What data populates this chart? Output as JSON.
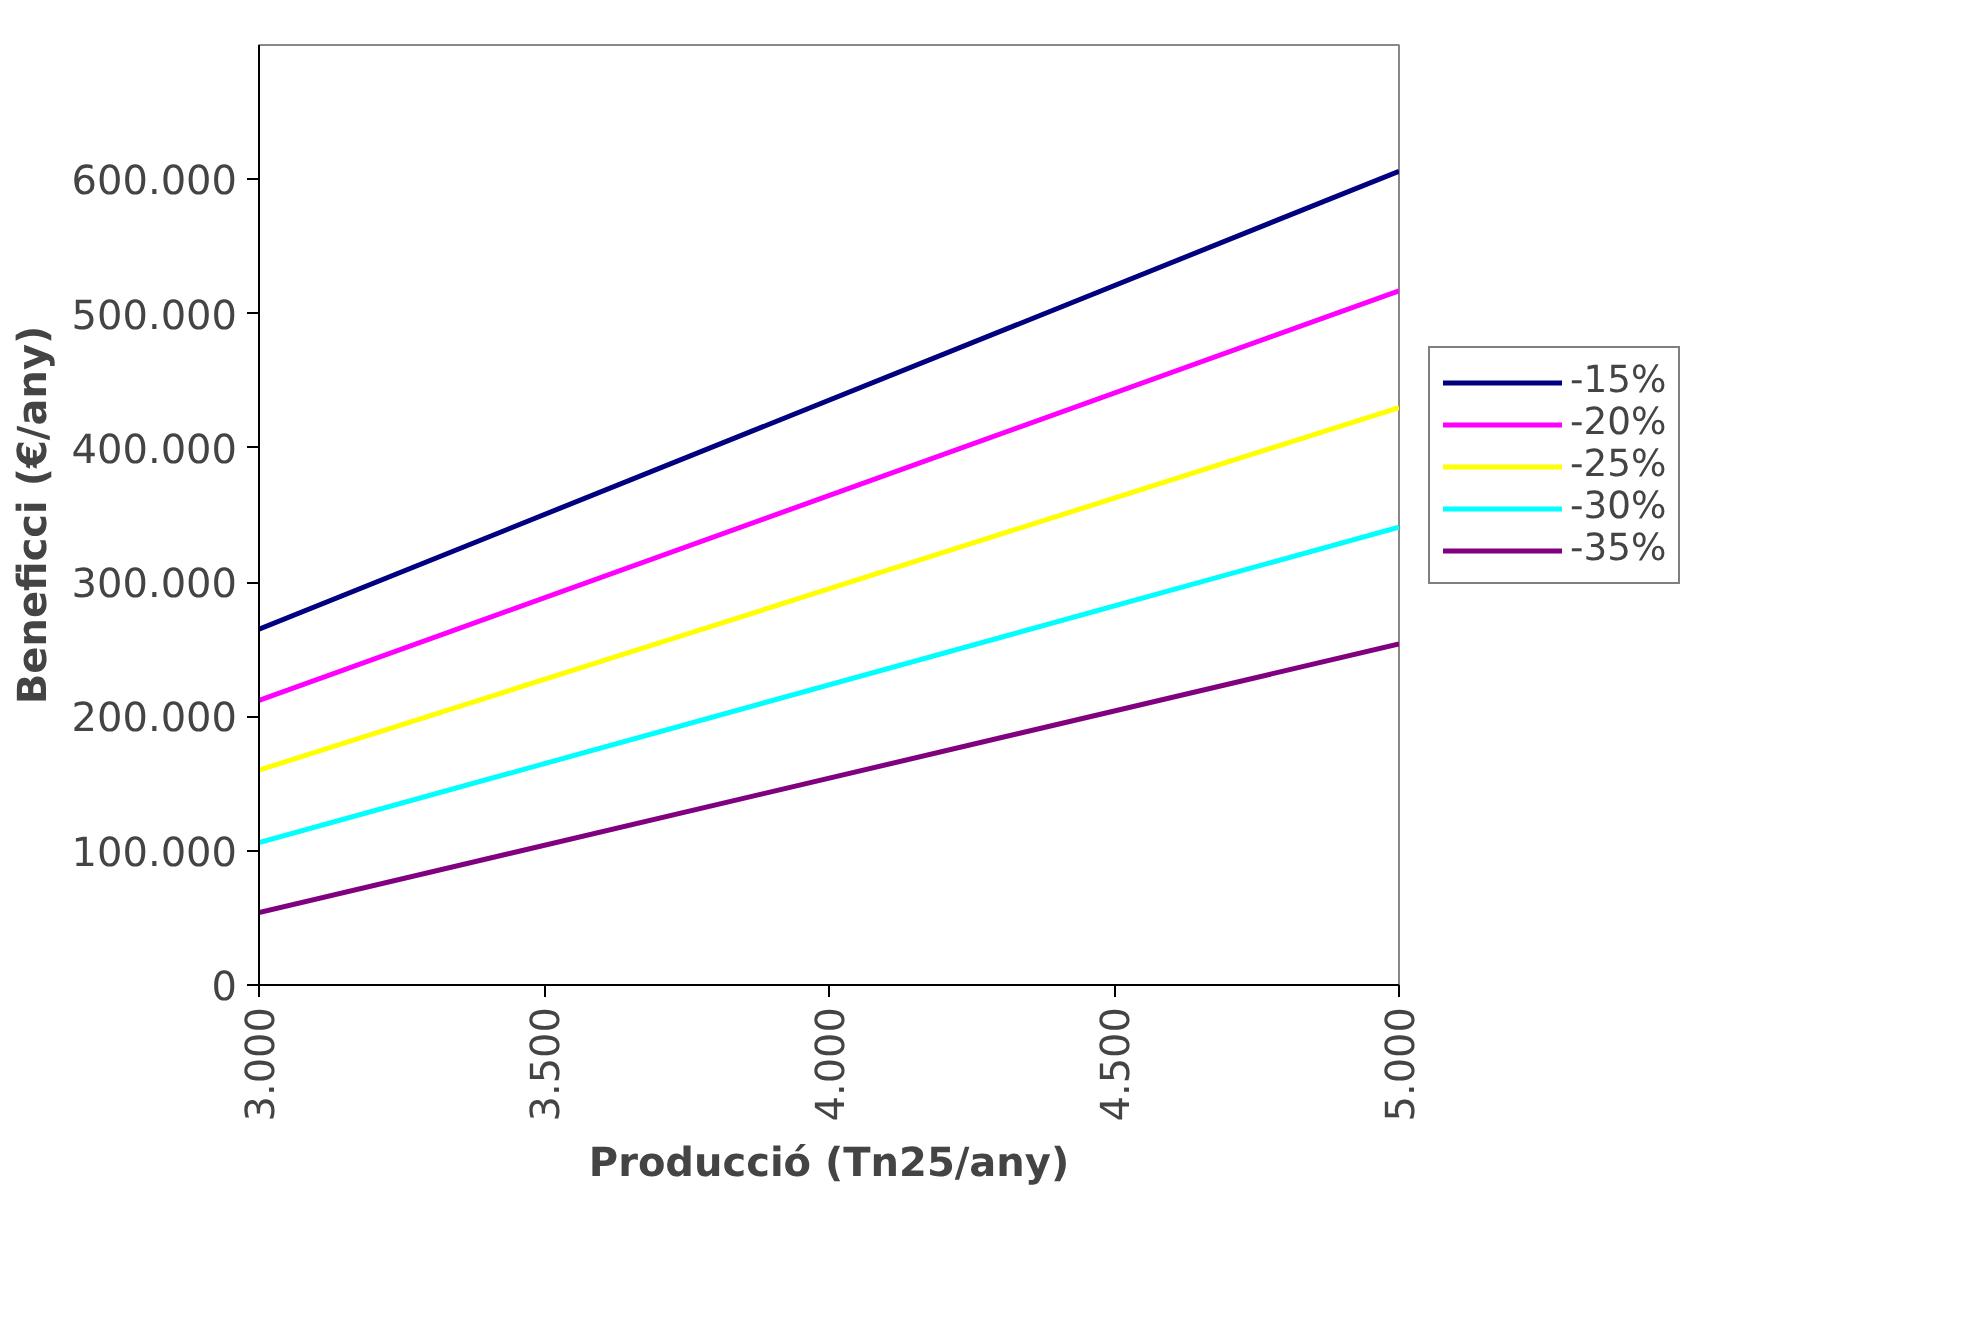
{
  "chart_data": {
    "type": "line",
    "xlabel": "Producció (Tn25/any)",
    "ylabel": "Beneficci (€/any)",
    "x": [
      3000,
      5000
    ],
    "series": [
      {
        "name": "-15%",
        "color": "#000080",
        "values": [
          265000,
          606000
        ]
      },
      {
        "name": "-20%",
        "color": "#ff00ff",
        "values": [
          212000,
          517000
        ]
      },
      {
        "name": "-25%",
        "color": "#ffff00",
        "values": [
          160000,
          430000
        ]
      },
      {
        "name": "-30%",
        "color": "#00ffff",
        "values": [
          106000,
          341000
        ]
      },
      {
        "name": "-35%",
        "color": "#800080",
        "values": [
          54000,
          254000
        ]
      }
    ],
    "xlim": [
      3000,
      5000
    ],
    "xticks": [
      {
        "value": 3000,
        "label": "3.000"
      },
      {
        "value": 3500,
        "label": "3.500"
      },
      {
        "value": 4000,
        "label": "4.000"
      },
      {
        "value": 4500,
        "label": "4.500"
      },
      {
        "value": 5000,
        "label": "5.000"
      }
    ],
    "ylim": [
      0,
      700000
    ],
    "yticks": [
      0,
      {
        "value": 100000,
        "label": "100.000"
      },
      {
        "value": 200000,
        "label": "200.000"
      },
      {
        "value": 300000,
        "label": "300.000"
      },
      {
        "value": 400000,
        "label": "400.000"
      },
      {
        "value": 500000,
        "label": "500.000"
      },
      {
        "value": 600000,
        "label": "600.000"
      }
    ],
    "grid": false,
    "legend": "right",
    "marker": "none",
    "line_style": "solid"
  }
}
